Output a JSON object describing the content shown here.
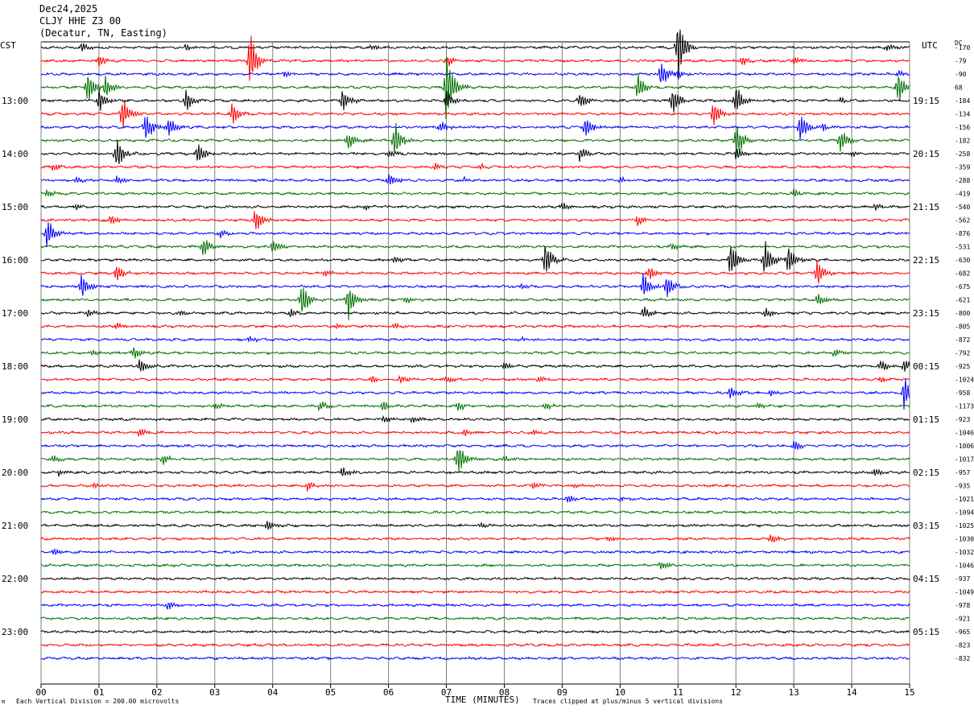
{
  "header": {
    "date": "Dec24,2025",
    "station": "CLJY HHE Z3 00",
    "location": "(Decatur, TN, Easting)"
  },
  "labels": {
    "left_tz": "CST",
    "right_tz": "UTC",
    "dc": "DC",
    "xlabel": "TIME (MINUTES)",
    "scale_note": "Each Vertical Division =  200.00 microvolts",
    "clip_note": "Traces clipped at plus/minus 5 vertical divisions",
    "corner_mark": "m"
  },
  "colors": {
    "trace_cycle": [
      "#000000",
      "#ff0000",
      "#0000ff",
      "#007000"
    ],
    "grid": "#808080"
  },
  "chart_data": {
    "type": "line",
    "title": "Dec24,2025",
    "xlabel": "TIME (MINUTES)",
    "x_ticks": [
      "00",
      "01",
      "02",
      "03",
      "04",
      "05",
      "06",
      "07",
      "08",
      "09",
      "10",
      "11",
      "12",
      "13",
      "14",
      "15"
    ],
    "xlim": [
      0,
      15
    ],
    "minutes_per_trace": 15,
    "left_time_labels": [
      "13:00",
      "14:00",
      "15:00",
      "16:00",
      "17:00",
      "18:00",
      "19:00",
      "20:00",
      "21:00",
      "22:00",
      "23:00"
    ],
    "right_time_labels": [
      "19:15",
      "20:15",
      "21:15",
      "22:15",
      "23:15",
      "00:15",
      "01:15",
      "02:15",
      "03:15",
      "04:15",
      "05:15"
    ],
    "dc_offsets": [
      "-170",
      "-79",
      "-90",
      "68",
      "-184",
      "-134",
      "-156",
      "-182",
      "-258",
      "-359",
      "-288",
      "-419",
      "-540",
      "-562",
      "-876",
      "-531",
      "-630",
      "-682",
      "-675",
      "-621",
      "-800",
      "-805",
      "-872",
      "-792",
      "-925",
      "-1024",
      "-958",
      "-1173",
      "-923",
      "-1046",
      "-1006",
      "-1017",
      "-957",
      "-935",
      "-1021",
      "-1094",
      "-1025",
      "-1030",
      "-1032",
      "-1046",
      "-937",
      "-1049",
      "-978",
      "-921",
      "-965",
      "-823",
      "-832"
    ],
    "events": [
      {
        "row": 0,
        "minute": 0.7,
        "amp": 8
      },
      {
        "row": 0,
        "minute": 2.5,
        "amp": 5
      },
      {
        "row": 0,
        "minute": 5.7,
        "amp": 5
      },
      {
        "row": 0,
        "minute": 11.0,
        "amp": 50
      },
      {
        "row": 0,
        "minute": 14.6,
        "amp": 6
      },
      {
        "row": 1,
        "minute": 3.6,
        "amp": 45
      },
      {
        "row": 1,
        "minute": 1.0,
        "amp": 8
      },
      {
        "row": 1,
        "minute": 7.0,
        "amp": 10
      },
      {
        "row": 1,
        "minute": 12.1,
        "amp": 8
      },
      {
        "row": 1,
        "minute": 13.0,
        "amp": 6
      },
      {
        "row": 2,
        "minute": 4.2,
        "amp": 5
      },
      {
        "row": 2,
        "minute": 10.7,
        "amp": 20
      },
      {
        "row": 2,
        "minute": 11.0,
        "amp": 8
      },
      {
        "row": 2,
        "minute": 14.8,
        "amp": 6
      },
      {
        "row": 3,
        "minute": 0.8,
        "amp": 25
      },
      {
        "row": 3,
        "minute": 1.1,
        "amp": 20
      },
      {
        "row": 3,
        "minute": 7.0,
        "amp": 60
      },
      {
        "row": 3,
        "minute": 10.3,
        "amp": 22
      },
      {
        "row": 3,
        "minute": 14.8,
        "amp": 25
      },
      {
        "row": 4,
        "minute": 1.0,
        "amp": 20
      },
      {
        "row": 4,
        "minute": 2.5,
        "amp": 18
      },
      {
        "row": 4,
        "minute": 5.2,
        "amp": 20
      },
      {
        "row": 4,
        "minute": 7.0,
        "amp": 15
      },
      {
        "row": 4,
        "minute": 9.3,
        "amp": 14
      },
      {
        "row": 4,
        "minute": 10.9,
        "amp": 25
      },
      {
        "row": 4,
        "minute": 12.0,
        "amp": 25
      },
      {
        "row": 4,
        "minute": 13.8,
        "amp": 5
      },
      {
        "row": 5,
        "minute": 1.4,
        "amp": 30
      },
      {
        "row": 5,
        "minute": 3.3,
        "amp": 18
      },
      {
        "row": 5,
        "minute": 11.6,
        "amp": 22
      },
      {
        "row": 6,
        "minute": 1.8,
        "amp": 25
      },
      {
        "row": 6,
        "minute": 2.2,
        "amp": 15
      },
      {
        "row": 6,
        "minute": 6.9,
        "amp": 8
      },
      {
        "row": 6,
        "minute": 9.4,
        "amp": 20
      },
      {
        "row": 6,
        "minute": 13.1,
        "amp": 25
      },
      {
        "row": 6,
        "minute": 13.5,
        "amp": 6
      },
      {
        "row": 7,
        "minute": 5.3,
        "amp": 15
      },
      {
        "row": 7,
        "minute": 6.1,
        "amp": 30
      },
      {
        "row": 7,
        "minute": 12.0,
        "amp": 30
      },
      {
        "row": 7,
        "minute": 13.8,
        "amp": 20
      },
      {
        "row": 8,
        "minute": 1.3,
        "amp": 25
      },
      {
        "row": 8,
        "minute": 2.7,
        "amp": 18
      },
      {
        "row": 8,
        "minute": 6.0,
        "amp": 6
      },
      {
        "row": 8,
        "minute": 9.3,
        "amp": 10
      },
      {
        "row": 8,
        "minute": 12.0,
        "amp": 10
      },
      {
        "row": 8,
        "minute": 14.0,
        "amp": 5
      },
      {
        "row": 9,
        "minute": 0.2,
        "amp": 5
      },
      {
        "row": 9,
        "minute": 6.8,
        "amp": 6
      },
      {
        "row": 9,
        "minute": 7.6,
        "amp": 4
      },
      {
        "row": 10,
        "minute": 0.6,
        "amp": 5
      },
      {
        "row": 10,
        "minute": 1.3,
        "amp": 8
      },
      {
        "row": 10,
        "minute": 6.0,
        "amp": 12
      },
      {
        "row": 10,
        "minute": 7.3,
        "amp": 4
      },
      {
        "row": 10,
        "minute": 10.0,
        "amp": 5
      },
      {
        "row": 11,
        "minute": 0.1,
        "amp": 6
      },
      {
        "row": 11,
        "minute": 13.0,
        "amp": 8
      },
      {
        "row": 12,
        "minute": 0.6,
        "amp": 5
      },
      {
        "row": 12,
        "minute": 5.6,
        "amp": 5
      },
      {
        "row": 12,
        "minute": 9.0,
        "amp": 6
      },
      {
        "row": 12,
        "minute": 14.4,
        "amp": 6
      },
      {
        "row": 13,
        "minute": 1.2,
        "amp": 8
      },
      {
        "row": 13,
        "minute": 3.7,
        "amp": 20
      },
      {
        "row": 13,
        "minute": 10.3,
        "amp": 10
      },
      {
        "row": 14,
        "minute": 0.1,
        "amp": 25
      },
      {
        "row": 14,
        "minute": 3.1,
        "amp": 6
      },
      {
        "row": 15,
        "minute": 2.8,
        "amp": 15
      },
      {
        "row": 15,
        "minute": 4.0,
        "amp": 12
      },
      {
        "row": 15,
        "minute": 10.9,
        "amp": 6
      },
      {
        "row": 16,
        "minute": 8.7,
        "amp": 30
      },
      {
        "row": 16,
        "minute": 11.9,
        "amp": 30
      },
      {
        "row": 16,
        "minute": 12.5,
        "amp": 28
      },
      {
        "row": 16,
        "minute": 12.9,
        "amp": 25
      },
      {
        "row": 16,
        "minute": 6.1,
        "amp": 6
      },
      {
        "row": 17,
        "minute": 1.3,
        "amp": 15
      },
      {
        "row": 17,
        "minute": 4.9,
        "amp": 6
      },
      {
        "row": 17,
        "minute": 10.5,
        "amp": 10
      },
      {
        "row": 17,
        "minute": 13.4,
        "amp": 25
      },
      {
        "row": 18,
        "minute": 0.7,
        "amp": 20
      },
      {
        "row": 18,
        "minute": 10.4,
        "amp": 22
      },
      {
        "row": 18,
        "minute": 10.8,
        "amp": 20
      },
      {
        "row": 18,
        "minute": 8.3,
        "amp": 5
      },
      {
        "row": 19,
        "minute": 4.5,
        "amp": 30
      },
      {
        "row": 19,
        "minute": 5.3,
        "amp": 30
      },
      {
        "row": 19,
        "minute": 6.3,
        "amp": 6
      },
      {
        "row": 19,
        "minute": 13.4,
        "amp": 10
      },
      {
        "row": 20,
        "minute": 0.8,
        "amp": 6
      },
      {
        "row": 20,
        "minute": 2.4,
        "amp": 5
      },
      {
        "row": 20,
        "minute": 4.3,
        "amp": 8
      },
      {
        "row": 20,
        "minute": 10.4,
        "amp": 12
      },
      {
        "row": 20,
        "minute": 12.5,
        "amp": 8
      },
      {
        "row": 21,
        "minute": 1.3,
        "amp": 6
      },
      {
        "row": 21,
        "minute": 5.1,
        "amp": 5
      },
      {
        "row": 21,
        "minute": 6.1,
        "amp": 5
      },
      {
        "row": 22,
        "minute": 3.6,
        "amp": 6
      },
      {
        "row": 22,
        "minute": 8.3,
        "amp": 4
      },
      {
        "row": 23,
        "minute": 0.9,
        "amp": 6
      },
      {
        "row": 23,
        "minute": 1.6,
        "amp": 10
      },
      {
        "row": 23,
        "minute": 13.7,
        "amp": 6
      },
      {
        "row": 24,
        "minute": 1.7,
        "amp": 12
      },
      {
        "row": 24,
        "minute": 8.0,
        "amp": 6
      },
      {
        "row": 24,
        "minute": 14.5,
        "amp": 10
      },
      {
        "row": 24,
        "minute": 14.9,
        "amp": 10
      },
      {
        "row": 25,
        "minute": 5.7,
        "amp": 6
      },
      {
        "row": 25,
        "minute": 6.2,
        "amp": 8
      },
      {
        "row": 25,
        "minute": 7.0,
        "amp": 6
      },
      {
        "row": 25,
        "minute": 8.6,
        "amp": 6
      },
      {
        "row": 25,
        "minute": 14.5,
        "amp": 5
      },
      {
        "row": 26,
        "minute": 12.6,
        "amp": 5
      },
      {
        "row": 26,
        "minute": 14.9,
        "amp": 25
      },
      {
        "row": 26,
        "minute": 11.9,
        "amp": 10
      },
      {
        "row": 27,
        "minute": 3.0,
        "amp": 6
      },
      {
        "row": 27,
        "minute": 4.8,
        "amp": 8
      },
      {
        "row": 27,
        "minute": 5.9,
        "amp": 10
      },
      {
        "row": 27,
        "minute": 7.2,
        "amp": 8
      },
      {
        "row": 27,
        "minute": 8.7,
        "amp": 6
      },
      {
        "row": 27,
        "minute": 12.4,
        "amp": 5
      },
      {
        "row": 28,
        "minute": 5.9,
        "amp": 6
      },
      {
        "row": 28,
        "minute": 6.4,
        "amp": 5
      },
      {
        "row": 29,
        "minute": 1.7,
        "amp": 6
      },
      {
        "row": 29,
        "minute": 7.3,
        "amp": 6
      },
      {
        "row": 29,
        "minute": 8.5,
        "amp": 5
      },
      {
        "row": 30,
        "minute": 13.0,
        "amp": 8
      },
      {
        "row": 31,
        "minute": 0.2,
        "amp": 6
      },
      {
        "row": 31,
        "minute": 2.1,
        "amp": 8
      },
      {
        "row": 31,
        "minute": 7.2,
        "amp": 30
      },
      {
        "row": 31,
        "minute": 8.0,
        "amp": 5
      },
      {
        "row": 32,
        "minute": 0.3,
        "amp": 6
      },
      {
        "row": 32,
        "minute": 5.2,
        "amp": 8
      },
      {
        "row": 32,
        "minute": 14.4,
        "amp": 6
      },
      {
        "row": 33,
        "minute": 0.9,
        "amp": 5
      },
      {
        "row": 33,
        "minute": 4.6,
        "amp": 8
      },
      {
        "row": 33,
        "minute": 8.5,
        "amp": 6
      },
      {
        "row": 33,
        "minute": 9.2,
        "amp": 5
      },
      {
        "row": 34,
        "minute": 9.1,
        "amp": 6
      },
      {
        "row": 34,
        "minute": 10.0,
        "amp": 4
      },
      {
        "row": 36,
        "minute": 3.9,
        "amp": 10
      },
      {
        "row": 36,
        "minute": 7.6,
        "amp": 5
      },
      {
        "row": 37,
        "minute": 9.8,
        "amp": 5
      },
      {
        "row": 37,
        "minute": 12.6,
        "amp": 8
      },
      {
        "row": 38,
        "minute": 0.2,
        "amp": 5
      },
      {
        "row": 39,
        "minute": 10.7,
        "amp": 8
      },
      {
        "row": 42,
        "minute": 2.2,
        "amp": 8
      }
    ]
  }
}
